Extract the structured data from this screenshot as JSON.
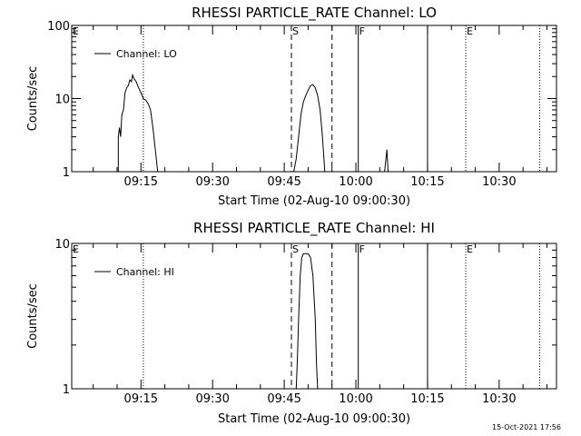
{
  "footer_timestamp": "15-Oct-2021 17:56",
  "chart_data": [
    {
      "type": "line",
      "title": "RHESSI PARTICLE_RATE Channel: LO",
      "xlabel": "Start Time (02-Aug-10 09:00:30)",
      "ylabel": "Counts/sec",
      "yscale": "log",
      "ylim": [
        1,
        100
      ],
      "y_ticks": [
        {
          "v": 1,
          "label": "1"
        },
        {
          "v": 10,
          "label": "10"
        },
        {
          "v": 100,
          "label": "100"
        }
      ],
      "xlim": [
        "09:00:30",
        "10:42:00"
      ],
      "x_ticks": [
        {
          "t": "09:15",
          "label": "09:15"
        },
        {
          "t": "09:30",
          "label": "09:30"
        },
        {
          "t": "09:45",
          "label": "09:45"
        },
        {
          "t": "10:00",
          "label": "10:00"
        },
        {
          "t": "10:15",
          "label": "10:15"
        },
        {
          "t": "10:30",
          "label": "10:30"
        }
      ],
      "grid": false,
      "legend_position": "top-left",
      "series": [
        {
          "name": "Channel: LO",
          "color": "#000000",
          "points": [
            [
              "09:10:15",
              1
            ],
            [
              "09:10:15",
              3
            ],
            [
              "09:10:30",
              4
            ],
            [
              "09:10:45",
              3
            ],
            [
              "09:11:00",
              6
            ],
            [
              "09:11:20",
              7
            ],
            [
              "09:11:40",
              12
            ],
            [
              "09:12:00",
              14
            ],
            [
              "09:12:20",
              15
            ],
            [
              "09:12:40",
              18
            ],
            [
              "09:13:00",
              17
            ],
            [
              "09:13:15",
              21
            ],
            [
              "09:13:30",
              19
            ],
            [
              "09:14:00",
              17
            ],
            [
              "09:14:30",
              14
            ],
            [
              "09:15:00",
              12
            ],
            [
              "09:15:30",
              10
            ],
            [
              "09:16:00",
              9.5
            ],
            [
              "09:16:30",
              8.5
            ],
            [
              "09:17:00",
              7
            ],
            [
              "09:17:30",
              4
            ],
            [
              "09:18:00",
              2
            ],
            [
              "09:18:30",
              1
            ],
            [
              "09:47:00",
              1
            ],
            [
              "09:47:30",
              1.5
            ],
            [
              "09:48:00",
              3
            ],
            [
              "09:48:30",
              6
            ],
            [
              "09:49:00",
              9
            ],
            [
              "09:49:30",
              11
            ],
            [
              "09:50:00",
              13
            ],
            [
              "09:50:30",
              15
            ],
            [
              "09:51:00",
              15.5
            ],
            [
              "09:51:30",
              14
            ],
            [
              "09:52:00",
              11
            ],
            [
              "09:52:30",
              7
            ],
            [
              "09:53:00",
              3
            ],
            [
              "09:53:30",
              1
            ],
            [
              "10:06:00",
              1
            ],
            [
              "10:06:15",
              1.4
            ],
            [
              "10:06:30",
              2
            ],
            [
              "10:06:45",
              1
            ]
          ]
        }
      ],
      "markers": [
        {
          "label": "E",
          "t": "09:00:30",
          "style": "dotted"
        },
        {
          "label": "",
          "t": "09:15:30",
          "style": "dotted"
        },
        {
          "label": "S",
          "t": "09:46:30",
          "style": "dashed"
        },
        {
          "label": "",
          "t": "09:55:00",
          "style": "dashed"
        },
        {
          "label": "F",
          "t": "10:00:30",
          "style": "solid"
        },
        {
          "label": "",
          "t": "10:15:00",
          "style": "solid"
        },
        {
          "label": "E",
          "t": "10:23:00",
          "style": "dotted"
        },
        {
          "label": "",
          "t": "10:38:30",
          "style": "dotted"
        }
      ]
    },
    {
      "type": "line",
      "title": "RHESSI PARTICLE_RATE Channel: HI",
      "xlabel": "Start Time (02-Aug-10 09:00:30)",
      "ylabel": "Counts/sec",
      "yscale": "log",
      "ylim": [
        1,
        10
      ],
      "y_ticks": [
        {
          "v": 1,
          "label": "1"
        },
        {
          "v": 10,
          "label": "10"
        }
      ],
      "xlim": [
        "09:00:30",
        "10:42:00"
      ],
      "x_ticks": [
        {
          "t": "09:15",
          "label": "09:15"
        },
        {
          "t": "09:30",
          "label": "09:30"
        },
        {
          "t": "09:45",
          "label": "09:45"
        },
        {
          "t": "10:00",
          "label": "10:00"
        },
        {
          "t": "10:15",
          "label": "10:15"
        },
        {
          "t": "10:30",
          "label": "10:30"
        }
      ],
      "grid": false,
      "legend_position": "top-left",
      "series": [
        {
          "name": "Channel: HI",
          "color": "#000000",
          "points": [
            [
              "09:47:30",
              1
            ],
            [
              "09:47:45",
              1.6
            ],
            [
              "09:48:00",
              3
            ],
            [
              "09:48:20",
              6
            ],
            [
              "09:48:40",
              8
            ],
            [
              "09:49:00",
              8.5
            ],
            [
              "09:50:00",
              8.5
            ],
            [
              "09:50:30",
              8
            ],
            [
              "09:51:00",
              6
            ],
            [
              "09:51:30",
              3
            ],
            [
              "09:51:45",
              1.5
            ],
            [
              "09:52:00",
              1
            ]
          ]
        }
      ],
      "markers": [
        {
          "label": "E",
          "t": "09:00:30",
          "style": "dotted"
        },
        {
          "label": "",
          "t": "09:15:30",
          "style": "dotted"
        },
        {
          "label": "S",
          "t": "09:46:30",
          "style": "dashed"
        },
        {
          "label": "",
          "t": "09:55:00",
          "style": "dashed"
        },
        {
          "label": "F",
          "t": "10:00:30",
          "style": "solid"
        },
        {
          "label": "",
          "t": "10:15:00",
          "style": "solid"
        },
        {
          "label": "E",
          "t": "10:23:00",
          "style": "dotted"
        },
        {
          "label": "",
          "t": "10:38:30",
          "style": "dotted"
        }
      ]
    }
  ]
}
